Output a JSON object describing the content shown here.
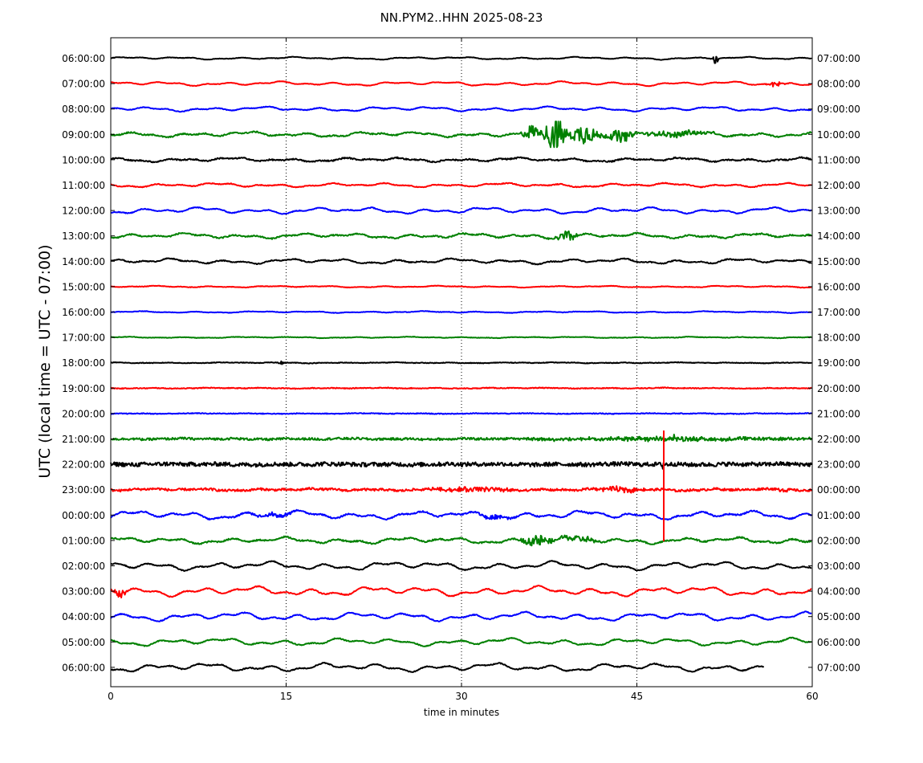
{
  "chart_data": {
    "type": "line",
    "title": "NN.PYM2..HHN 2025-08-23",
    "xlabel": "time in minutes",
    "ylabel": "UTC (local time = UTC - 07:00)",
    "xlim": [
      0,
      60
    ],
    "xticks": [
      "0",
      "15",
      "30",
      "45",
      "60"
    ],
    "vertical_gridlines_at": [
      15,
      30,
      45
    ],
    "grid": "vertical dotted",
    "trace_colors": [
      "#000000",
      "#ff0000",
      "#0000ff",
      "#008000"
    ],
    "rows": [
      {
        "left": "06:00:00",
        "right": "07:00:00"
      },
      {
        "left": "07:00:00",
        "right": "08:00:00"
      },
      {
        "left": "08:00:00",
        "right": "09:00:00"
      },
      {
        "left": "09:00:00",
        "right": "10:00:00"
      },
      {
        "left": "10:00:00",
        "right": "11:00:00"
      },
      {
        "left": "11:00:00",
        "right": "12:00:00"
      },
      {
        "left": "12:00:00",
        "right": "13:00:00"
      },
      {
        "left": "13:00:00",
        "right": "14:00:00"
      },
      {
        "left": "14:00:00",
        "right": "15:00:00"
      },
      {
        "left": "15:00:00",
        "right": "16:00:00"
      },
      {
        "left": "16:00:00",
        "right": "17:00:00"
      },
      {
        "left": "17:00:00",
        "right": "18:00:00"
      },
      {
        "left": "18:00:00",
        "right": "19:00:00"
      },
      {
        "left": "19:00:00",
        "right": "20:00:00"
      },
      {
        "left": "20:00:00",
        "right": "21:00:00"
      },
      {
        "left": "21:00:00",
        "right": "22:00:00"
      },
      {
        "left": "22:00:00",
        "right": "23:00:00"
      },
      {
        "left": "23:00:00",
        "right": "00:00:00"
      },
      {
        "left": "00:00:00",
        "right": "01:00:00"
      },
      {
        "left": "01:00:00",
        "right": "02:00:00"
      },
      {
        "left": "02:00:00",
        "right": "03:00:00"
      },
      {
        "left": "03:00:00",
        "right": "04:00:00"
      },
      {
        "left": "04:00:00",
        "right": "05:00:00"
      },
      {
        "left": "05:00:00",
        "right": "06:00:00"
      },
      {
        "left": "06:00:00",
        "right": "07:00:00"
      }
    ]
  }
}
